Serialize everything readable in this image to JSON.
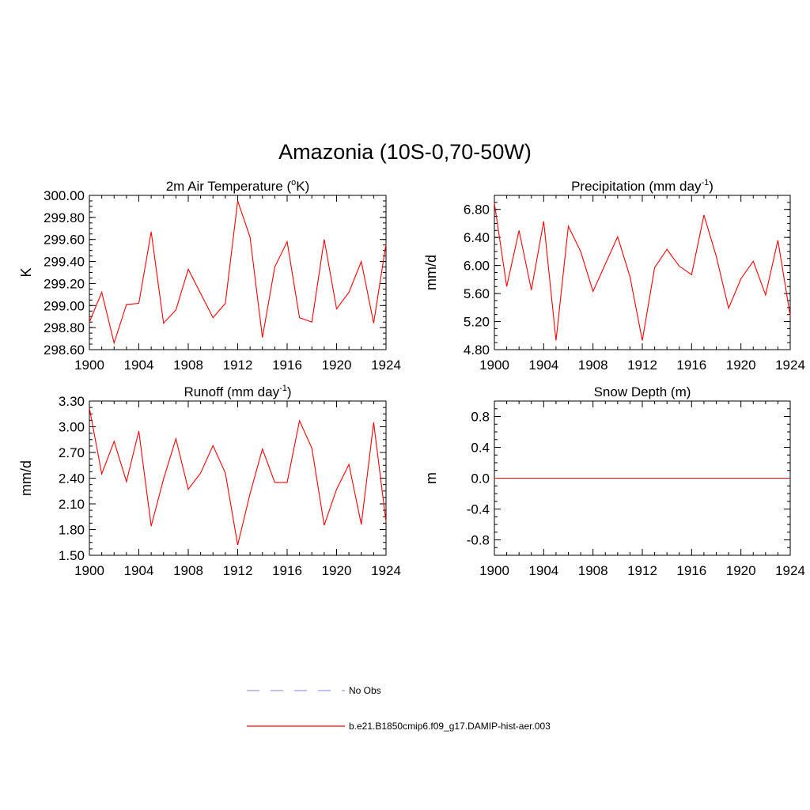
{
  "figure": {
    "title": "Amazonia (10S-0,70-50W)"
  },
  "colors": {
    "series_line": "#ff0000",
    "obs_line": "#9999ff",
    "axis": "#000000"
  },
  "legend": {
    "entries": [
      {
        "label": "No Obs",
        "style": "dashed",
        "color": "#9999ff"
      },
      {
        "label": "b.e21.B1850cmip6.f09_g17.DAMIP-hist-aer.003",
        "style": "solid",
        "color": "#ff0000"
      }
    ]
  },
  "chart_data": [
    {
      "type": "line",
      "title_main": "2m Air Temperature (",
      "title_sup": "o",
      "title_end": "K)",
      "ylabel": "K",
      "xlim": [
        1900,
        1924
      ],
      "ylim": [
        298.6,
        300.0
      ],
      "xticks": [
        1900,
        1904,
        1908,
        1912,
        1916,
        1920,
        1924
      ],
      "yticks": [
        "298.60",
        "298.80",
        "299.00",
        "299.20",
        "299.40",
        "299.60",
        "299.80",
        "300.00"
      ],
      "x": [
        1900,
        1901,
        1902,
        1903,
        1904,
        1905,
        1906,
        1907,
        1908,
        1909,
        1910,
        1911,
        1912,
        1913,
        1914,
        1915,
        1916,
        1917,
        1918,
        1919,
        1920,
        1921,
        1922,
        1923,
        1924
      ],
      "series": [
        {
          "values": [
            298.85,
            299.12,
            298.66,
            299.01,
            299.02,
            299.67,
            298.84,
            298.96,
            299.33,
            299.11,
            298.89,
            299.02,
            299.95,
            299.62,
            298.71,
            299.35,
            299.58,
            298.89,
            298.85,
            299.6,
            298.97,
            299.12,
            299.4,
            298.84,
            299.56
          ]
        }
      ]
    },
    {
      "type": "line",
      "title_main": "Precipitation (mm day",
      "title_sup": "-1",
      "title_end": ")",
      "ylabel": "mm/d",
      "xlim": [
        1900,
        1924
      ],
      "ylim": [
        4.8,
        7.0
      ],
      "xticks": [
        1900,
        1904,
        1908,
        1912,
        1916,
        1920,
        1924
      ],
      "yticks": [
        "4.80",
        "5.20",
        "5.60",
        "6.00",
        "6.40",
        "6.80"
      ],
      "x": [
        1900,
        1901,
        1902,
        1903,
        1904,
        1905,
        1906,
        1907,
        1908,
        1909,
        1910,
        1911,
        1912,
        1913,
        1914,
        1915,
        1916,
        1917,
        1918,
        1919,
        1920,
        1921,
        1922,
        1923,
        1924
      ],
      "series": [
        {
          "values": [
            6.89,
            5.7,
            6.5,
            5.65,
            6.63,
            4.93,
            6.56,
            6.2,
            5.63,
            6.02,
            6.41,
            5.84,
            4.93,
            5.97,
            6.23,
            5.99,
            5.87,
            6.72,
            6.13,
            5.39,
            5.81,
            6.06,
            5.58,
            6.36,
            5.28
          ]
        }
      ]
    },
    {
      "type": "line",
      "title_main": "Runoff (mm day",
      "title_sup": "-1",
      "title_end": ")",
      "ylabel": "mm/d",
      "xlim": [
        1900,
        1924
      ],
      "ylim": [
        1.5,
        3.3
      ],
      "xticks": [
        1900,
        1904,
        1908,
        1912,
        1916,
        1920,
        1924
      ],
      "yticks": [
        "1.50",
        "1.80",
        "2.10",
        "2.40",
        "2.70",
        "3.00",
        "3.30"
      ],
      "x": [
        1900,
        1901,
        1902,
        1903,
        1904,
        1905,
        1906,
        1907,
        1908,
        1909,
        1910,
        1911,
        1912,
        1913,
        1914,
        1915,
        1916,
        1917,
        1918,
        1919,
        1920,
        1921,
        1922,
        1923,
        1924
      ],
      "series": [
        {
          "values": [
            3.22,
            2.45,
            2.83,
            2.36,
            2.95,
            1.84,
            2.39,
            2.86,
            2.27,
            2.46,
            2.78,
            2.46,
            1.62,
            2.22,
            2.74,
            2.35,
            2.35,
            3.07,
            2.75,
            1.85,
            2.27,
            2.56,
            1.86,
            3.05,
            1.89
          ]
        }
      ]
    },
    {
      "type": "line",
      "title_main": "Snow Depth (m)",
      "title_sup": "",
      "title_end": "",
      "ylabel": "m",
      "xlim": [
        1900,
        1924
      ],
      "ylim": [
        -1.0,
        1.0
      ],
      "xticks": [
        1900,
        1904,
        1908,
        1912,
        1916,
        1920,
        1924
      ],
      "yticks": [
        "-0.8",
        "-0.4",
        "0.0",
        "0.4",
        "0.8"
      ],
      "x": [
        1900,
        1924
      ],
      "series": [
        {
          "values": [
            0.0,
            0.0
          ]
        }
      ]
    }
  ]
}
